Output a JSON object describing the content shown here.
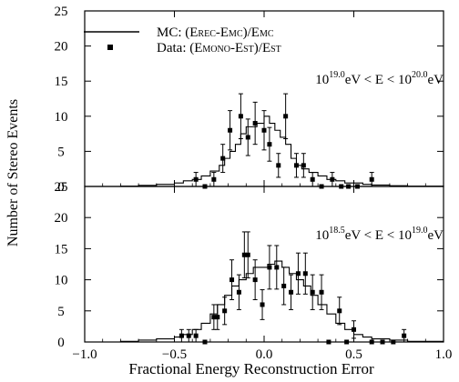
{
  "figure": {
    "xlabel": "Fractional Energy Reconstruction Error",
    "ylabel": "Number of Stereo Events"
  },
  "legend": {
    "mc": {
      "prefix": "MC:  (E",
      "sub1": "REC",
      "mid": "-E",
      "sub2": "MC",
      "mid2": ")/E",
      "sub3": "MC"
    },
    "data": {
      "prefix": "Data:  (E",
      "sub1": "MONO",
      "mid": "-E",
      "sub2": "ST",
      "mid2": ")/E",
      "sub3": "ST"
    }
  },
  "chart_data": [
    {
      "type": "line",
      "panel": "top",
      "annotation": {
        "base1": "10",
        "exp1": "19.0",
        "mid": "eV < E < 10",
        "exp2": "20.0",
        "tail": "eV"
      },
      "xlim": [
        -1.0,
        1.0
      ],
      "ylim": [
        0,
        25
      ],
      "xticks": [
        "−1.0",
        "−0.5",
        "0.0",
        "0.5",
        "1.0"
      ],
      "yticks": [
        "0",
        "5",
        "10",
        "15",
        "20",
        "25"
      ],
      "series": [
        {
          "name": "MC:  (EREC-EMC)/EMC",
          "kind": "histogram",
          "x": [
            -1.0,
            -0.8,
            -0.7,
            -0.6,
            -0.5,
            -0.45,
            -0.4,
            -0.35,
            -0.3,
            -0.25,
            -0.22,
            -0.19,
            -0.16,
            -0.13,
            -0.1,
            -0.07,
            -0.04,
            0.0,
            0.03,
            0.06,
            0.09,
            0.12,
            0.15,
            0.18,
            0.21,
            0.25,
            0.3,
            0.35,
            0.4,
            0.45,
            0.5,
            0.55,
            0.6,
            0.7,
            0.8,
            1.0
          ],
          "y": [
            0,
            0.05,
            0.15,
            0.3,
            0.5,
            0.8,
            1.0,
            1.5,
            2.2,
            3.0,
            4.0,
            5.0,
            6.0,
            7.5,
            8.5,
            8.5,
            9.0,
            10.0,
            9.0,
            8.0,
            7.0,
            6.0,
            4.0,
            3.0,
            2.5,
            2.0,
            1.5,
            1.0,
            0.8,
            0.5,
            0.5,
            0.3,
            0.2,
            0.1,
            0.05,
            0.0
          ]
        },
        {
          "name": "Data:  (EMONO-EST)/EST",
          "kind": "points",
          "x": [
            -0.38,
            -0.33,
            -0.28,
            -0.23,
            -0.19,
            -0.13,
            -0.09,
            -0.05,
            0.0,
            0.03,
            0.08,
            0.12,
            0.18,
            0.22,
            0.27,
            0.32,
            0.38,
            0.43,
            0.47,
            0.52,
            0.6
          ],
          "y": [
            1,
            0,
            1,
            4,
            8,
            10,
            7,
            9,
            8,
            6,
            3,
            10,
            3,
            3,
            1,
            0,
            1,
            0,
            0,
            0,
            1
          ],
          "yerr": [
            1,
            0,
            1,
            2,
            2.8,
            3.2,
            2.6,
            3.0,
            2.8,
            2.4,
            1.7,
            3.2,
            1.7,
            1.7,
            1,
            0,
            1,
            0,
            0,
            0,
            1
          ]
        }
      ]
    },
    {
      "type": "line",
      "panel": "bottom",
      "annotation": {
        "base1": "10",
        "exp1": "18.5",
        "mid": "eV < E < 10",
        "exp2": "19.0",
        "tail": "eV"
      },
      "xlim": [
        -1.0,
        1.0
      ],
      "ylim": [
        0,
        25
      ],
      "xticks": [
        "−1.0",
        "−0.5",
        "0.0",
        "0.5",
        "1.0"
      ],
      "yticks": [
        "0",
        "5",
        "10",
        "15",
        "20",
        "25"
      ],
      "series": [
        {
          "name": "MC:  (EREC-EMC)/EMC",
          "kind": "histogram",
          "x": [
            -1.0,
            -0.8,
            -0.7,
            -0.6,
            -0.5,
            -0.45,
            -0.4,
            -0.35,
            -0.3,
            -0.26,
            -0.22,
            -0.18,
            -0.14,
            -0.1,
            -0.06,
            -0.02,
            0.02,
            0.06,
            0.1,
            0.14,
            0.18,
            0.22,
            0.26,
            0.3,
            0.35,
            0.4,
            0.45,
            0.5,
            0.55,
            0.6,
            0.7,
            0.8,
            1.0
          ],
          "y": [
            0,
            0.1,
            0.3,
            0.5,
            0.8,
            1.2,
            2.0,
            3.0,
            4.5,
            6.0,
            7.5,
            9.0,
            10.0,
            11.0,
            12.0,
            12.0,
            12.5,
            13.0,
            12.0,
            11.0,
            10.0,
            9.0,
            7.5,
            6.0,
            4.5,
            3.0,
            2.0,
            1.2,
            0.8,
            0.5,
            0.3,
            0.1,
            0.0
          ]
        },
        {
          "name": "Data:  (EMONO-EST)/EST",
          "kind": "points",
          "x": [
            -0.46,
            -0.42,
            -0.38,
            -0.33,
            -0.28,
            -0.26,
            -0.22,
            -0.18,
            -0.14,
            -0.11,
            -0.09,
            -0.05,
            -0.01,
            0.03,
            0.07,
            0.11,
            0.15,
            0.19,
            0.23,
            0.27,
            0.32,
            0.36,
            0.42,
            0.46,
            0.5,
            0.6,
            0.66,
            0.72,
            0.78
          ],
          "y": [
            1,
            1,
            1,
            0,
            4,
            4,
            5,
            10,
            8,
            14,
            14,
            10,
            6,
            12,
            12,
            9,
            8,
            11,
            11,
            8,
            8,
            0,
            5,
            0,
            2,
            0,
            0,
            0,
            1
          ],
          "yerr": [
            1,
            1,
            1,
            0,
            2,
            2,
            2.2,
            3.2,
            2.8,
            3.7,
            3.7,
            3.2,
            2.4,
            3.5,
            3.5,
            3.0,
            2.8,
            3.3,
            3.3,
            2.8,
            2.8,
            0,
            2.2,
            0,
            1.4,
            0,
            0,
            0,
            1
          ]
        }
      ]
    }
  ]
}
